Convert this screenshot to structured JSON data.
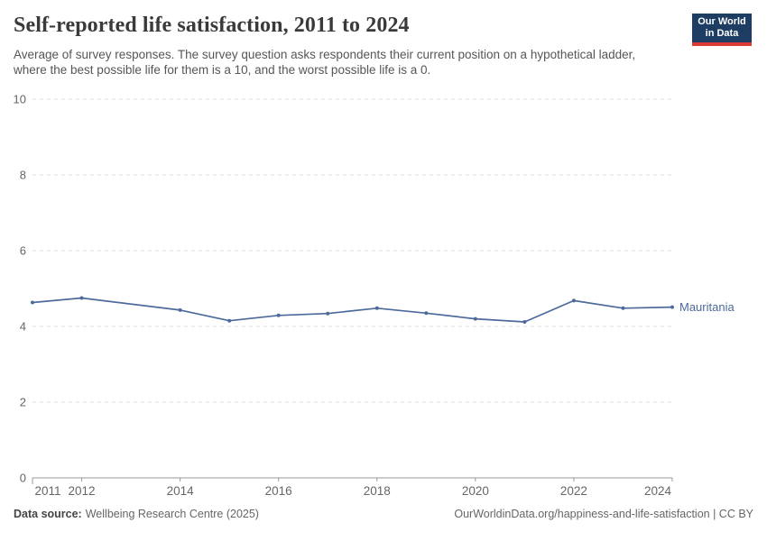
{
  "header": {
    "title": "Self-reported life satisfaction, 2011 to 2024",
    "subtitle": "Average of survey responses. The survey question asks respondents their current position on a hypothetical ladder, where the best possible life for them is a 10, and the worst possible life is a 0.",
    "logo": {
      "line1": "Our World",
      "line2": "in Data"
    }
  },
  "chart_data": {
    "type": "line",
    "title": "Self-reported life satisfaction, 2011 to 2024",
    "x": [
      2011,
      2012,
      2014,
      2015,
      2016,
      2017,
      2018,
      2019,
      2020,
      2021,
      2022,
      2023,
      2024
    ],
    "series": [
      {
        "name": "Mauritania",
        "color": "#4c6a9c",
        "values": [
          4.63,
          4.75,
          4.43,
          4.15,
          4.29,
          4.34,
          4.48,
          4.35,
          4.2,
          4.12,
          4.68,
          4.48,
          4.51
        ]
      }
    ],
    "xlim": [
      2011,
      2024
    ],
    "ylim": [
      0,
      10
    ],
    "yticks": [
      0,
      2,
      4,
      6,
      8,
      10
    ],
    "xticks": [
      2011,
      2012,
      2014,
      2016,
      2018,
      2020,
      2022,
      2024
    ],
    "grid": "horizontal-dashed",
    "legend_position": "end-of-line-label"
  },
  "footer": {
    "source_label": "Data source:",
    "source_value": "Wellbeing Research Centre (2025)",
    "link_text": "OurWorldinData.org/happiness-and-life-satisfaction | CC BY"
  },
  "colors": {
    "title": "#3a3a3a",
    "subtitle": "#565656",
    "axis_label": "#666666",
    "gridline": "#dddddd",
    "axis_line": "#999999",
    "logo_bg": "#1d3d63",
    "logo_stripe": "#dc3a32",
    "line": "#4c6a9c"
  }
}
